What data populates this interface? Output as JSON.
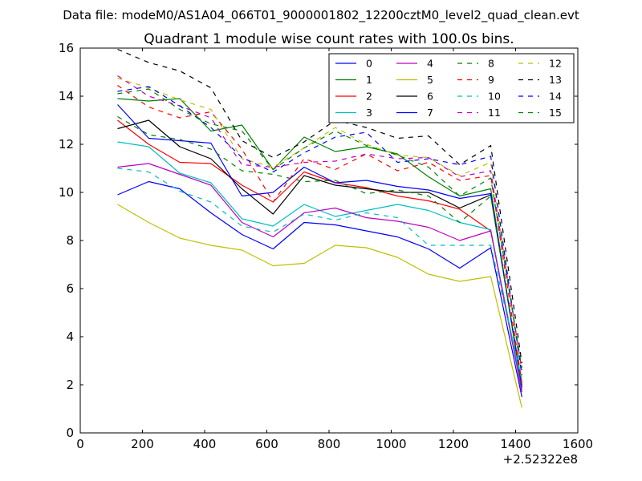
{
  "chart_data": {
    "type": "line",
    "suptitle": "Data file: modeM0/AS1A04_066T01_9000001802_12200cztM0_level2_quad_clean.evt",
    "title": "Quadrant 1 module wise count rates with 100.0s bins.",
    "xlabel": "",
    "ylabel": "",
    "x_offset_label": "+2.52322e8",
    "xlim": [
      0,
      1600
    ],
    "ylim": [
      0,
      16
    ],
    "x_ticks": [
      "0",
      "200",
      "400",
      "600",
      "800",
      "1000",
      "1200",
      "1400",
      "1600"
    ],
    "y_ticks": [
      "0",
      "2",
      "4",
      "6",
      "8",
      "10",
      "12",
      "14",
      "16"
    ],
    "grid": false,
    "legend_position": "top-right",
    "x": [
      120,
      220,
      320,
      420,
      520,
      620,
      720,
      820,
      920,
      1020,
      1120,
      1220,
      1320,
      1420
    ],
    "series": [
      {
        "name": "0",
        "color": "#0000ff",
        "dash": "solid",
        "values": [
          9.9,
          10.45,
          10.15,
          9.15,
          8.25,
          7.65,
          8.75,
          8.65,
          8.4,
          8.15,
          7.65,
          6.85,
          7.7,
          1.5
        ]
      },
      {
        "name": "1",
        "color": "#008000",
        "dash": "solid",
        "values": [
          13.9,
          13.8,
          13.9,
          12.55,
          12.8,
          10.95,
          12.3,
          11.7,
          11.9,
          11.6,
          10.65,
          9.85,
          10.15,
          1.8
        ]
      },
      {
        "name": "2",
        "color": "#ff0000",
        "dash": "solid",
        "values": [
          13.0,
          12.0,
          11.25,
          11.2,
          10.3,
          9.6,
          10.85,
          10.4,
          10.2,
          9.85,
          9.65,
          9.3,
          8.4,
          1.8
        ]
      },
      {
        "name": "3",
        "color": "#00bfbf",
        "dash": "solid",
        "values": [
          12.1,
          11.9,
          10.8,
          10.4,
          8.9,
          8.6,
          9.5,
          9.0,
          9.25,
          9.5,
          9.25,
          8.75,
          8.45,
          1.9
        ]
      },
      {
        "name": "4",
        "color": "#bf00bf",
        "dash": "solid",
        "values": [
          11.05,
          11.2,
          10.75,
          10.3,
          8.75,
          8.15,
          9.15,
          9.35,
          8.95,
          8.8,
          8.55,
          8.0,
          8.4,
          1.7
        ]
      },
      {
        "name": "5",
        "color": "#bfbf00",
        "dash": "solid",
        "values": [
          9.5,
          8.75,
          8.1,
          7.8,
          7.6,
          6.95,
          7.05,
          7.8,
          7.7,
          7.3,
          6.6,
          6.3,
          6.5,
          1.05
        ]
      },
      {
        "name": "6",
        "color": "#000000",
        "dash": "solid",
        "values": [
          12.65,
          13.0,
          11.9,
          11.4,
          10.15,
          9.1,
          10.7,
          10.3,
          10.15,
          10.0,
          10.0,
          9.35,
          9.9,
          2.0
        ]
      },
      {
        "name": "7",
        "color": "#0000ff",
        "dash": "solid",
        "values": [
          13.65,
          12.25,
          12.15,
          12.05,
          9.85,
          10.0,
          11.05,
          10.4,
          10.5,
          10.25,
          10.1,
          9.75,
          9.95,
          1.9
        ]
      },
      {
        "name": "8",
        "color": "#008000",
        "dash": "dashed",
        "values": [
          13.15,
          12.4,
          12.2,
          11.8,
          10.9,
          10.75,
          10.45,
          10.5,
          9.95,
          10.1,
          9.85,
          8.75,
          9.85,
          2.0
        ]
      },
      {
        "name": "9",
        "color": "#ff0000",
        "dash": "dashed",
        "values": [
          14.45,
          13.55,
          13.1,
          13.35,
          11.8,
          9.6,
          11.4,
          10.95,
          11.6,
          10.9,
          11.25,
          10.5,
          10.7,
          2.1
        ]
      },
      {
        "name": "10",
        "color": "#00bfbf",
        "dash": "dashed",
        "values": [
          11.0,
          10.85,
          10.05,
          9.6,
          8.6,
          8.35,
          9.1,
          8.85,
          9.15,
          8.95,
          7.8,
          7.8,
          7.8,
          2.2
        ]
      },
      {
        "name": "11",
        "color": "#bf00bf",
        "dash": "dashed",
        "values": [
          14.85,
          14.0,
          13.6,
          13.1,
          11.15,
          11.05,
          11.25,
          11.3,
          11.6,
          11.4,
          11.45,
          10.65,
          10.9,
          2.6
        ]
      },
      {
        "name": "12",
        "color": "#bfbf00",
        "dash": "dashed",
        "values": [
          14.75,
          14.35,
          13.85,
          13.45,
          11.4,
          11.05,
          11.85,
          12.7,
          12.0,
          11.55,
          11.45,
          10.7,
          11.25,
          2.3
        ]
      },
      {
        "name": "13",
        "color": "#000000",
        "dash": "dashed",
        "values": [
          15.95,
          15.4,
          15.05,
          14.35,
          12.15,
          11.45,
          12.1,
          13.0,
          12.7,
          12.25,
          12.35,
          11.15,
          11.95,
          2.9
        ]
      },
      {
        "name": "14",
        "color": "#0000ff",
        "dash": "dashed",
        "values": [
          14.2,
          14.4,
          13.6,
          12.7,
          11.45,
          10.85,
          11.65,
          12.3,
          12.5,
          11.25,
          11.4,
          11.15,
          11.5,
          2.4
        ]
      },
      {
        "name": "15",
        "color": "#008000",
        "dash": "dashed",
        "values": [
          14.1,
          14.3,
          13.45,
          12.85,
          12.55,
          10.95,
          11.85,
          12.55,
          11.95,
          11.55,
          11.05,
          9.85,
          10.6,
          2.7
        ]
      }
    ]
  }
}
